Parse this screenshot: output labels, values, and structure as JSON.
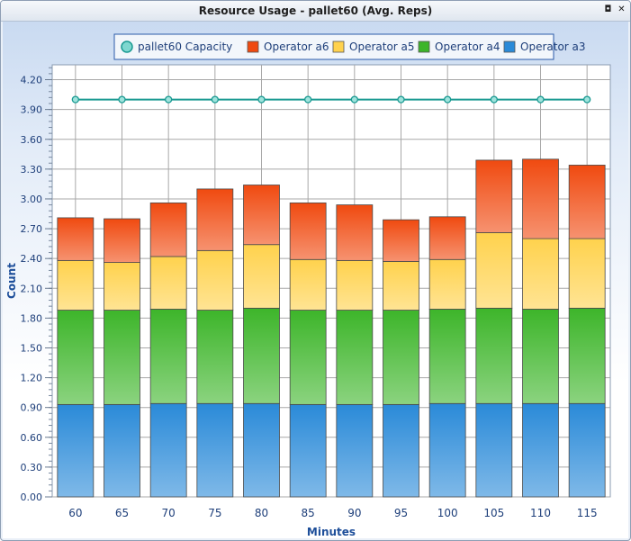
{
  "window": {
    "title": "Resource Usage - pallet60 (Avg. Reps)",
    "restore_glyph": "◘",
    "close_glyph": "✕"
  },
  "chart_data": {
    "type": "bar",
    "stacked": true,
    "title": "",
    "xlabel": "Minutes",
    "ylabel": "Count",
    "ylim": [
      0,
      4.35
    ],
    "yticks": [
      0.0,
      0.3,
      0.6,
      0.9,
      1.2,
      1.5,
      1.8,
      2.1,
      2.4,
      2.7,
      3.0,
      3.3,
      3.6,
      3.9,
      4.2
    ],
    "ytick_labels": [
      "0.00",
      "0.30",
      "0.60",
      "0.90",
      "1.20",
      "1.50",
      "1.80",
      "2.10",
      "2.40",
      "2.70",
      "3.00",
      "3.30",
      "3.60",
      "3.90",
      "4.20"
    ],
    "grid": true,
    "legend_position": "top",
    "categories": [
      "60",
      "65",
      "70",
      "75",
      "80",
      "85",
      "90",
      "95",
      "100",
      "105",
      "110",
      "115"
    ],
    "legend": [
      "pallet60 Capacity",
      "Operator a6",
      "Operator a5",
      "Operator a4",
      "Operator a3"
    ],
    "series": [
      {
        "name": "Operator a3",
        "color": "#2a8ad8",
        "values": [
          0.93,
          0.93,
          0.94,
          0.94,
          0.94,
          0.93,
          0.93,
          0.93,
          0.94,
          0.94,
          0.94,
          0.94
        ]
      },
      {
        "name": "Operator a4",
        "color": "#3db52a",
        "values": [
          0.95,
          0.95,
          0.95,
          0.94,
          0.96,
          0.95,
          0.95,
          0.95,
          0.95,
          0.96,
          0.95,
          0.96
        ]
      },
      {
        "name": "Operator a5",
        "color": "#ffd24d",
        "values": [
          0.5,
          0.48,
          0.53,
          0.6,
          0.64,
          0.51,
          0.5,
          0.49,
          0.5,
          0.76,
          0.71,
          0.7
        ]
      },
      {
        "name": "Operator a6",
        "color": "#f04a10",
        "values": [
          0.43,
          0.44,
          0.54,
          0.62,
          0.6,
          0.57,
          0.56,
          0.42,
          0.43,
          0.73,
          0.8,
          0.74
        ]
      }
    ],
    "line_series": {
      "name": "pallet60 Capacity",
      "color": "#1a9a92",
      "values": [
        4.0,
        4.0,
        4.0,
        4.0,
        4.0,
        4.0,
        4.0,
        4.0,
        4.0,
        4.0,
        4.0,
        4.0
      ]
    }
  }
}
